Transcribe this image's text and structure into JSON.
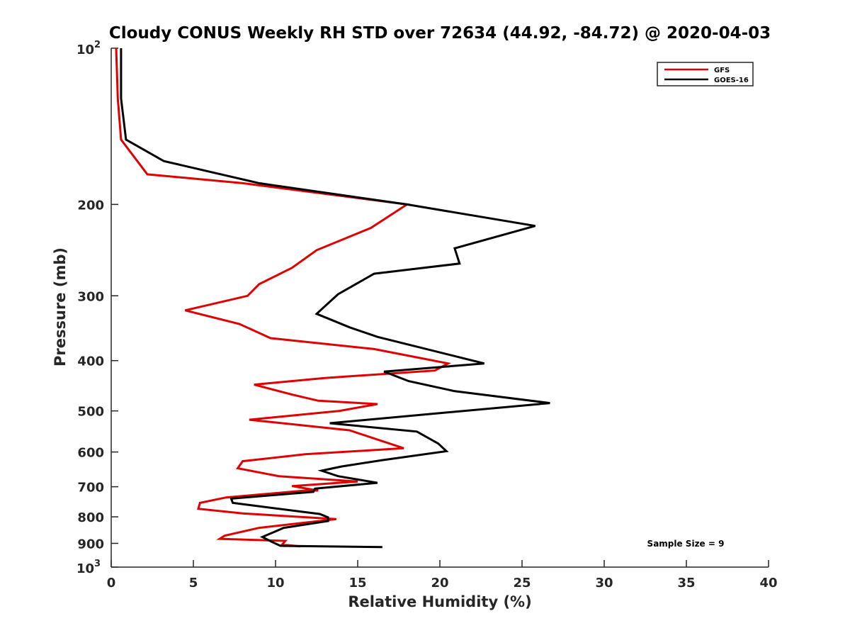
{
  "chart_data": {
    "type": "line",
    "title": "Cloudy CONUS Weekly RH STD over 72634 (44.92, -84.72) @ 2020-04-03",
    "xlabel": "Relative Humidity (%)",
    "ylabel": "Pressure (mb)",
    "xlim": [
      0,
      40
    ],
    "ylim": [
      100,
      1000
    ],
    "y_scale": "log",
    "y_reversed": true,
    "grid": false,
    "legend_position": "top-right",
    "x_ticks": [
      "0",
      "5",
      "10",
      "15",
      "20",
      "25",
      "30",
      "35",
      "40"
    ],
    "y_ticks": [
      {
        "value": 100,
        "base": "10",
        "exp": "2"
      },
      {
        "value": 200,
        "label": "200"
      },
      {
        "value": 300,
        "label": "300"
      },
      {
        "value": 400,
        "label": "400"
      },
      {
        "value": 500,
        "label": "500"
      },
      {
        "value": 600,
        "label": "600"
      },
      {
        "value": 700,
        "label": "700"
      },
      {
        "value": 800,
        "label": "800"
      },
      {
        "value": 900,
        "label": "900"
      },
      {
        "value": 1000,
        "base": "10",
        "exp": "3"
      }
    ],
    "series": [
      {
        "name": "GFS",
        "color": "#e00000",
        "points": [
          [
            0.3,
            100
          ],
          [
            0.4,
            125
          ],
          [
            0.6,
            150
          ],
          [
            2.2,
            175
          ],
          [
            8.0,
            182
          ],
          [
            18.0,
            200
          ],
          [
            15.8,
            222
          ],
          [
            12.5,
            245
          ],
          [
            11.0,
            265
          ],
          [
            9.0,
            285
          ],
          [
            8.3,
            300
          ],
          [
            4.5,
            320
          ],
          [
            7.8,
            340
          ],
          [
            9.7,
            362
          ],
          [
            16.0,
            380
          ],
          [
            20.5,
            405
          ],
          [
            19.7,
            418
          ],
          [
            13.0,
            432
          ],
          [
            8.7,
            445
          ],
          [
            11.0,
            465
          ],
          [
            12.6,
            478
          ],
          [
            16.2,
            485
          ],
          [
            13.9,
            500
          ],
          [
            8.4,
            520
          ],
          [
            14.5,
            545
          ],
          [
            17.8,
            590
          ],
          [
            11.8,
            606
          ],
          [
            8.0,
            625
          ],
          [
            7.7,
            645
          ],
          [
            10.2,
            668
          ],
          [
            15.0,
            684
          ],
          [
            11.0,
            698
          ],
          [
            12.6,
            712
          ],
          [
            11.8,
            712
          ],
          [
            7.0,
            734
          ],
          [
            5.4,
            752
          ],
          [
            5.3,
            772
          ],
          [
            8.0,
            788
          ],
          [
            13.7,
            808
          ],
          [
            9.0,
            840
          ],
          [
            6.9,
            870
          ],
          [
            6.6,
            882
          ],
          [
            10.6,
            890
          ],
          [
            10.4,
            905
          ],
          [
            11.5,
            912
          ]
        ]
      },
      {
        "name": "GOES-16",
        "color": "#000000",
        "points": [
          [
            0.6,
            100
          ],
          [
            0.6,
            125
          ],
          [
            0.9,
            150
          ],
          [
            3.2,
            165
          ],
          [
            9.0,
            182
          ],
          [
            18.0,
            200
          ],
          [
            25.8,
            220
          ],
          [
            20.9,
            243
          ],
          [
            21.2,
            260
          ],
          [
            16.0,
            272
          ],
          [
            13.8,
            298
          ],
          [
            12.5,
            325
          ],
          [
            14.5,
            345
          ],
          [
            16.2,
            360
          ],
          [
            22.7,
            405
          ],
          [
            16.6,
            420
          ],
          [
            18.1,
            438
          ],
          [
            20.9,
            458
          ],
          [
            26.7,
            483
          ],
          [
            13.3,
            528
          ],
          [
            18.6,
            548
          ],
          [
            19.9,
            578
          ],
          [
            20.4,
            598
          ],
          [
            16.5,
            622
          ],
          [
            14.0,
            640
          ],
          [
            12.8,
            652
          ],
          [
            13.8,
            668
          ],
          [
            16.2,
            688
          ],
          [
            12.4,
            706
          ],
          [
            12.3,
            716
          ],
          [
            7.3,
            738
          ],
          [
            7.4,
            752
          ],
          [
            12.7,
            790
          ],
          [
            13.2,
            802
          ],
          [
            13.2,
            815
          ],
          [
            10.5,
            840
          ],
          [
            9.2,
            875
          ],
          [
            9.8,
            895
          ],
          [
            10.3,
            910
          ],
          [
            16.5,
            915
          ]
        ]
      }
    ],
    "annotations": [
      {
        "text": "Sample Size = 9"
      }
    ]
  }
}
